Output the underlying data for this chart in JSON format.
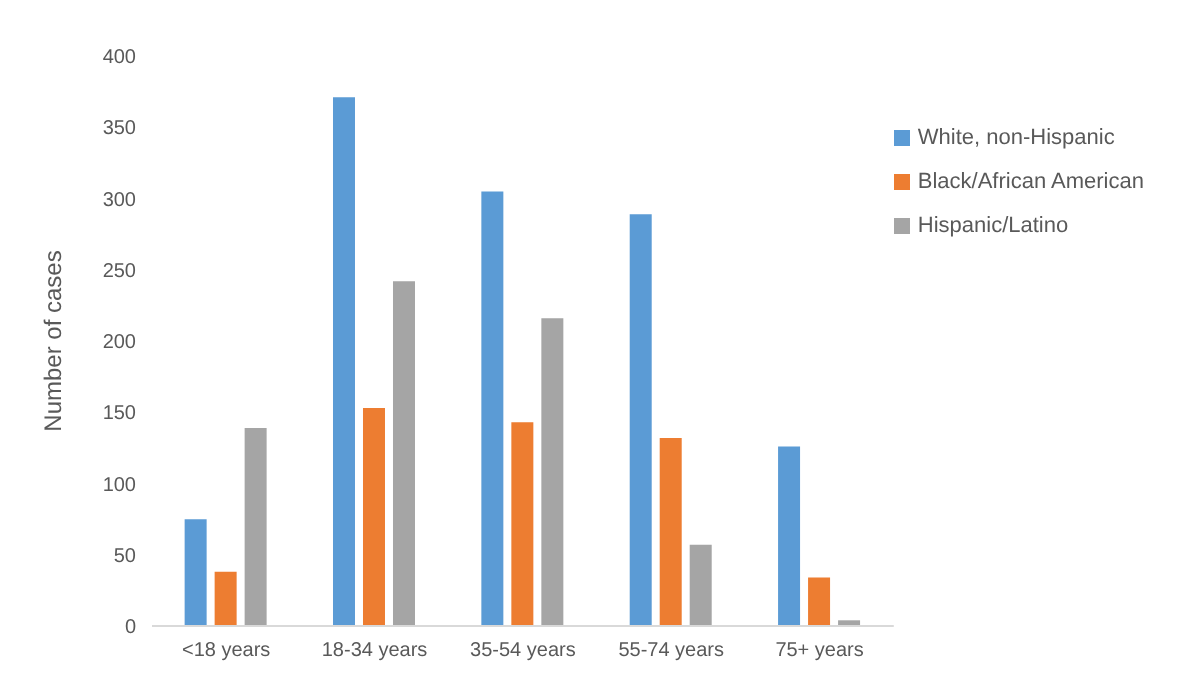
{
  "chart_data": {
    "type": "bar",
    "ylabel": "Number of cases",
    "categories": [
      "<18 years",
      "18-34 years",
      "35-54 years",
      "55-74 years",
      "75+ years"
    ],
    "series": [
      {
        "name": "White, non-Hispanic",
        "color": "#5b9bd5",
        "values": [
          75,
          371,
          305,
          289,
          126
        ]
      },
      {
        "name": "Black/African American",
        "color": "#ed7d31",
        "values": [
          38,
          153,
          143,
          132,
          34
        ]
      },
      {
        "name": "Hispanic/Latino",
        "color": "#a5a5a5",
        "values": [
          139,
          242,
          216,
          57,
          4
        ]
      }
    ],
    "ylim": [
      0,
      400
    ],
    "yticks": [
      0,
      50,
      100,
      150,
      200,
      250,
      300,
      350,
      400
    ],
    "grid": false,
    "legend": "right"
  }
}
